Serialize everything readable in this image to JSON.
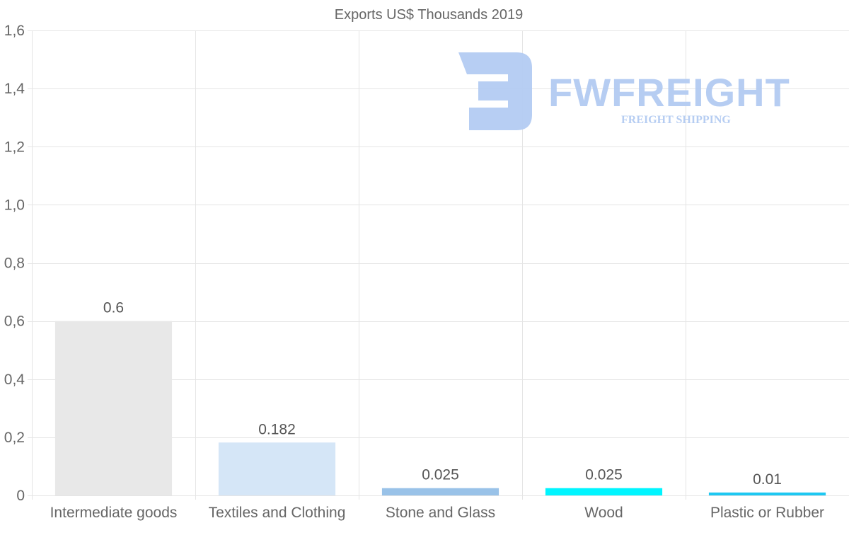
{
  "chart_data": {
    "type": "bar",
    "title": "Exports US$ Thousands 2019",
    "categories": [
      "Intermediate goods",
      "Textiles and Clothing",
      "Stone and Glass",
      "Wood",
      "Plastic or Rubber"
    ],
    "values": [
      0.6,
      0.182,
      0.025,
      0.025,
      0.01
    ],
    "data_labels": [
      "0.6",
      "0.182",
      "0.025",
      "0.025",
      "0.01"
    ],
    "colors": [
      "#e8e8e8",
      "#d5e6f7",
      "#99c2e8",
      "#00f5ff",
      "#1ec8f2"
    ],
    "ylim": [
      0,
      1.6
    ],
    "yticks": [
      0,
      0.2,
      0.4,
      0.6,
      0.8,
      1.0,
      1.2,
      1.4,
      1.6
    ],
    "ytick_labels": [
      "0",
      "0,2",
      "0,4",
      "0,6",
      "0,8",
      "1,0",
      "1,2",
      "1,4",
      "1,6"
    ],
    "grid": true,
    "xlabel": "",
    "ylabel": ""
  },
  "watermark": {
    "brand": "FWFREIGHT",
    "tagline": "FREIGHT SHIPPING",
    "color": "#b3cbf2"
  }
}
